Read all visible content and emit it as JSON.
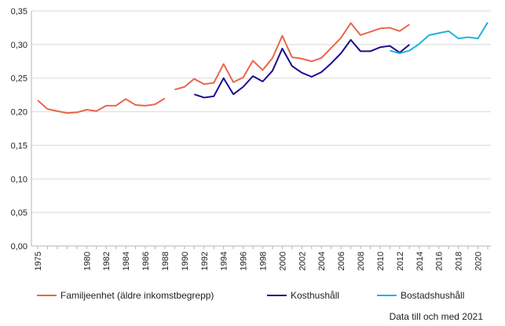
{
  "chart_data": {
    "type": "line",
    "title": "",
    "xlabel": "",
    "ylabel": "",
    "ylim": [
      0,
      0.35
    ],
    "xlim": [
      1975,
      2021
    ],
    "grid": "horizontal",
    "legend_position": "bottom",
    "y_ticks": [
      "0,00",
      "0,05",
      "0,10",
      "0,15",
      "0,20",
      "0,25",
      "0,30",
      "0,35"
    ],
    "x_ticks": [
      "1975",
      "1980",
      "1982",
      "1984",
      "1986",
      "1988",
      "1990",
      "1992",
      "1994",
      "1996",
      "1998",
      "2000",
      "2002",
      "2004",
      "2006",
      "2008",
      "2010",
      "2012",
      "2014",
      "2016",
      "2018",
      "2020"
    ],
    "footnote": "Data till och med 2021",
    "series": [
      {
        "name": "Familjeenhet (äldre inkomstbegrepp)",
        "color": "#e8664b",
        "segments": [
          [
            [
              1975,
              0.217
            ],
            [
              1976,
              0.204
            ],
            [
              1977,
              0.201
            ],
            [
              1978,
              0.198
            ],
            [
              1979,
              0.199
            ],
            [
              1980,
              0.203
            ],
            [
              1981,
              0.201
            ],
            [
              1982,
              0.209
            ],
            [
              1983,
              0.209
            ],
            [
              1984,
              0.219
            ],
            [
              1985,
              0.21
            ],
            [
              1986,
              0.209
            ],
            [
              1987,
              0.211
            ],
            [
              1988,
              0.22
            ]
          ],
          [
            [
              1989,
              0.233
            ],
            [
              1990,
              0.237
            ],
            [
              1991,
              0.249
            ],
            [
              1992,
              0.241
            ],
            [
              1993,
              0.243
            ],
            [
              1994,
              0.271
            ],
            [
              1995,
              0.244
            ],
            [
              1996,
              0.251
            ],
            [
              1997,
              0.276
            ],
            [
              1998,
              0.262
            ],
            [
              1999,
              0.28
            ],
            [
              2000,
              0.313
            ],
            [
              2001,
              0.281
            ],
            [
              2002,
              0.279
            ],
            [
              2003,
              0.275
            ],
            [
              2004,
              0.28
            ],
            [
              2005,
              0.295
            ],
            [
              2006,
              0.31
            ],
            [
              2007,
              0.332
            ],
            [
              2008,
              0.314
            ],
            [
              2009,
              0.319
            ],
            [
              2010,
              0.324
            ],
            [
              2011,
              0.325
            ],
            [
              2012,
              0.32
            ],
            [
              2013,
              0.33
            ]
          ]
        ]
      },
      {
        "name": "Kosthushåll",
        "color": "#1d0a8e",
        "segments": [
          [
            [
              1991,
              0.226
            ],
            [
              1992,
              0.221
            ],
            [
              1993,
              0.223
            ],
            [
              1994,
              0.25
            ],
            [
              1995,
              0.226
            ],
            [
              1996,
              0.237
            ],
            [
              1997,
              0.253
            ],
            [
              1998,
              0.245
            ],
            [
              1999,
              0.261
            ],
            [
              2000,
              0.294
            ],
            [
              2001,
              0.268
            ],
            [
              2002,
              0.258
            ],
            [
              2003,
              0.252
            ],
            [
              2004,
              0.259
            ],
            [
              2005,
              0.272
            ],
            [
              2006,
              0.287
            ],
            [
              2007,
              0.307
            ],
            [
              2008,
              0.29
            ],
            [
              2009,
              0.29
            ],
            [
              2010,
              0.296
            ],
            [
              2011,
              0.298
            ],
            [
              2012,
              0.288
            ],
            [
              2013,
              0.3
            ]
          ]
        ]
      },
      {
        "name": "Bostadshushåll",
        "color": "#1fb2e0",
        "segments": [
          [
            [
              2011,
              0.291
            ],
            [
              2012,
              0.287
            ],
            [
              2013,
              0.291
            ],
            [
              2014,
              0.301
            ],
            [
              2015,
              0.314
            ],
            [
              2016,
              0.317
            ],
            [
              2017,
              0.32
            ],
            [
              2018,
              0.309
            ],
            [
              2019,
              0.311
            ],
            [
              2020,
              0.309
            ],
            [
              2021,
              0.333
            ]
          ]
        ]
      }
    ]
  }
}
